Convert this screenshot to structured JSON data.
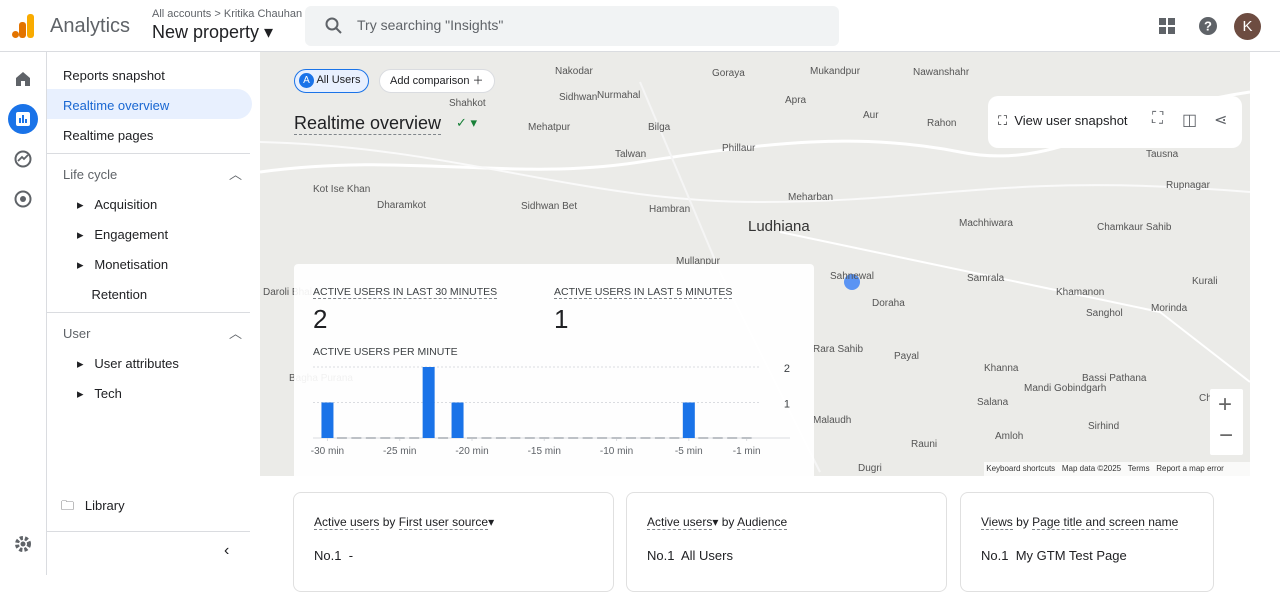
{
  "header": {
    "product": "Analytics",
    "breadcrumb": [
      "All accounts",
      "Kritika Chauhan"
    ],
    "property": "New property",
    "search_placeholder": "Try searching \"Insights\"",
    "avatar": "K"
  },
  "nav": {
    "items": [
      "Reports snapshot",
      "Realtime overview",
      "Realtime pages"
    ],
    "sections": [
      {
        "title": "Life cycle",
        "items": [
          "Acquisition",
          "Engagement",
          "Monetisation",
          "Retention"
        ]
      },
      {
        "title": "User",
        "items": [
          "User attributes",
          "Tech"
        ]
      }
    ],
    "library": "Library"
  },
  "toolbar": {
    "segment_letter": "A",
    "segment": "All Users",
    "add_comparison": "Add comparison",
    "title": "Realtime overview",
    "view_snapshot": "View user snapshot"
  },
  "map": {
    "places": [
      "Nakodar",
      "Goraya",
      "Mukandpur",
      "Nawanshahr",
      "Sidhwan",
      "Nurmahal",
      "Apra",
      "Shahkot",
      "Aur",
      "Rahon",
      "Mehatpur",
      "Bilga",
      "Phillaur",
      "Talwan",
      "Tausna",
      "Kot Ise Khan",
      "Dharamkot",
      "Sidhwan Bet",
      "Hambran",
      "Meharban",
      "Machhiwara",
      "Chamkaur Sahib",
      "Rupnagar",
      "Ludhiana",
      "Sahnewal",
      "Samrala",
      "Khamanon",
      "Kurali",
      "Doraha",
      "Sanghol",
      "Morinda",
      "Rara Sahib",
      "Payal",
      "Khanna",
      "Bassi Pathana",
      "Mandi Gobindgarh",
      "Salana",
      "Malaudh",
      "Amloh",
      "Sirhind",
      "Chunni",
      "Rauni",
      "Dugri",
      "Bagha Purana",
      "Daroli Bhai",
      "Mullanpur"
    ],
    "attribution": [
      "Keyboard shortcuts",
      "Map data ©2025",
      "Terms",
      "Report a map error"
    ]
  },
  "summary": {
    "metrics": [
      {
        "label": "ACTIVE USERS IN LAST 30 MINUTES",
        "value": 2
      },
      {
        "label": "ACTIVE USERS IN LAST 5 MINUTES",
        "value": 1
      }
    ],
    "chart_data": {
      "type": "bar",
      "title": "ACTIVE USERS PER MINUTE",
      "color": "#1a73e8",
      "x": [
        -30,
        -29,
        -28,
        -27,
        -26,
        -25,
        -24,
        -23,
        -22,
        -21,
        -20,
        -19,
        -18,
        -17,
        -16,
        -15,
        -14,
        -13,
        -12,
        -11,
        -10,
        -9,
        -8,
        -7,
        -6,
        -5,
        -4,
        -3,
        -2,
        -1
      ],
      "values": [
        1,
        0,
        0,
        0,
        0,
        0,
        0,
        2,
        0,
        1,
        0,
        0,
        0,
        0,
        0,
        0,
        0,
        0,
        0,
        0,
        0,
        0,
        0,
        0,
        0,
        1,
        0,
        0,
        0,
        0
      ],
      "xlim": [
        -31,
        2
      ],
      "xticks": [
        {
          "value": -30,
          "label": "-30 min"
        },
        {
          "value": -25,
          "label": "-25 min"
        },
        {
          "value": -20,
          "label": "-20 min"
        },
        {
          "value": -15,
          "label": "-15 min"
        },
        {
          "value": -10,
          "label": "-10 min"
        },
        {
          "value": -5,
          "label": "-5 min"
        },
        {
          "value": -1,
          "label": "-1 min"
        }
      ],
      "ylim": [
        0,
        2
      ],
      "yticks": [
        1,
        2
      ],
      "grid": true
    }
  },
  "cards": [
    {
      "metric": "Active users",
      "by": "by",
      "dimension": "First user source",
      "rank": "No.1",
      "top": "-"
    },
    {
      "metric": "Active users",
      "by": "by",
      "dimension": "Audience",
      "rank": "No.1",
      "top": "All Users"
    },
    {
      "metric": "Views",
      "by": "by",
      "dimension": "Page title and screen name",
      "rank": "No.1",
      "top": "My GTM Test Page"
    }
  ]
}
